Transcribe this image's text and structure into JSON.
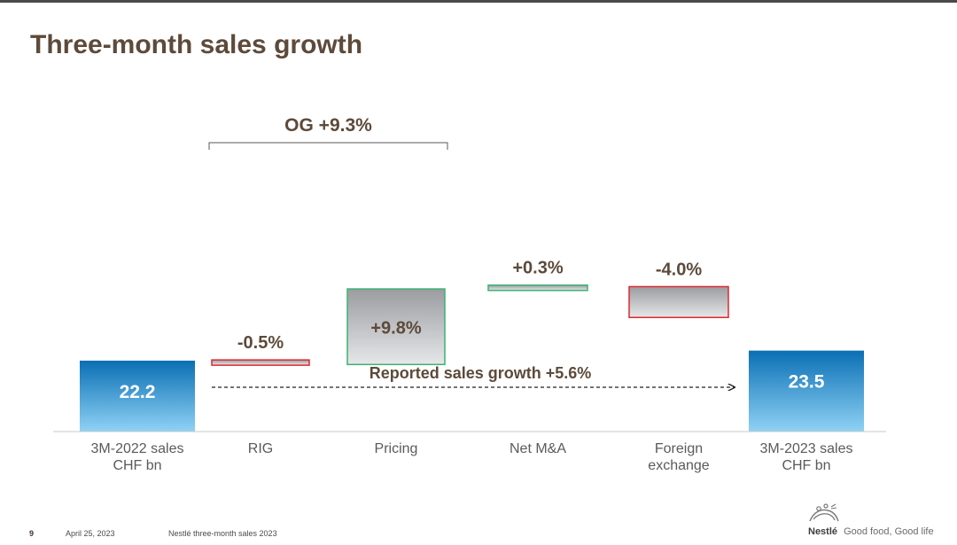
{
  "slide": {
    "title": "Three-month sales growth",
    "page_number": "9",
    "date": "April 25, 2023",
    "document": "Nestlé three-month sales 2023",
    "brand_name": "Nestlé",
    "brand_tagline": "Good food, Good life"
  },
  "colors": {
    "title": "#5d4a3a",
    "positive_border": "#3bb273",
    "negative_border": "#e0282e",
    "total_top": "#0a6fb4",
    "total_bottom": "#8fd2f5",
    "change_top": "#9a9ca0",
    "change_bottom": "#e6e7e9"
  },
  "chart_data": {
    "type": "bar",
    "subtype": "waterfall",
    "unit": "CHF bn",
    "categories": [
      "3M-2022 sales\nCHF bn",
      "RIG",
      "Pricing",
      "Net M&A",
      "Foreign\nexchange",
      "3M-2023 sales\nCHF bn"
    ],
    "steps": [
      {
        "category": "3M-2022 sales\nCHF bn",
        "kind": "total",
        "value": 22.2,
        "label": "22.2"
      },
      {
        "category": "RIG",
        "kind": "change",
        "value": -0.5,
        "label": "-0.5%"
      },
      {
        "category": "Pricing",
        "kind": "change",
        "value": 9.8,
        "label": "+9.8%"
      },
      {
        "category": "Net M&A",
        "kind": "change",
        "value": 0.3,
        "label": "+0.3%"
      },
      {
        "category": "Foreign\nexchange",
        "kind": "change",
        "value": -4.0,
        "label": "-4.0%"
      },
      {
        "category": "3M-2023 sales\nCHF bn",
        "kind": "total",
        "value": 23.5,
        "label": "23.5"
      }
    ],
    "annotations": {
      "og_label": "OG +9.3%",
      "og_span": [
        "RIG",
        "Pricing"
      ],
      "reported_label": "Reported sales growth +5.6%"
    }
  }
}
